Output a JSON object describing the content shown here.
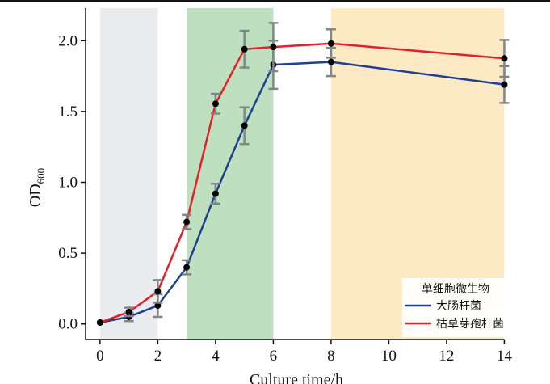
{
  "chart_data": {
    "type": "line",
    "xlabel": "Culture time/h",
    "ylabel": "OD",
    "ylabel_sub": "600",
    "xlim": [
      -0.5,
      14.1
    ],
    "ylim": [
      -0.11,
      2.23
    ],
    "xticks": [
      0,
      2,
      4,
      6,
      8,
      10,
      12,
      14
    ],
    "xtick_labels": [
      "0",
      "2",
      "4",
      "6",
      "8",
      "10",
      "12",
      "14"
    ],
    "yticks": [
      0,
      0.5,
      1.0,
      1.5,
      2.0
    ],
    "ytick_labels": [
      "0.0",
      "0.5",
      "1.0",
      "1.5",
      "2.0"
    ],
    "grid": false,
    "shaded_regions": [
      {
        "x": [
          0,
          2
        ],
        "color": "#ebecef"
      },
      {
        "x": [
          3,
          6
        ],
        "color": "#bfe0bf"
      },
      {
        "x": [
          8,
          14
        ],
        "color": "#fde9c4"
      }
    ],
    "legend": {
      "title": "单细胞微生物",
      "placement": "bottom-right"
    },
    "x": [
      0,
      1,
      2,
      3,
      4,
      5,
      6,
      8,
      14
    ],
    "series": [
      {
        "name": "大肠杆菌",
        "color": "#1f3f93",
        "values": [
          0.01,
          0.05,
          0.13,
          0.4,
          0.92,
          1.4,
          1.83,
          1.85,
          1.69
        ],
        "errors": [
          0.0,
          0.03,
          0.08,
          0.05,
          0.07,
          0.13,
          0.17,
          0.1,
          0.13
        ]
      },
      {
        "name": "枯草芽孢杆菌",
        "color": "#e41f2a",
        "values": [
          0.01,
          0.085,
          0.23,
          0.72,
          1.555,
          1.94,
          1.955,
          1.98,
          1.875
        ],
        "errors": [
          0.0,
          0.03,
          0.08,
          0.05,
          0.07,
          0.13,
          0.17,
          0.1,
          0.13
        ]
      }
    ],
    "errorbar_color": "#7f8787",
    "marker_color": "#000000"
  }
}
